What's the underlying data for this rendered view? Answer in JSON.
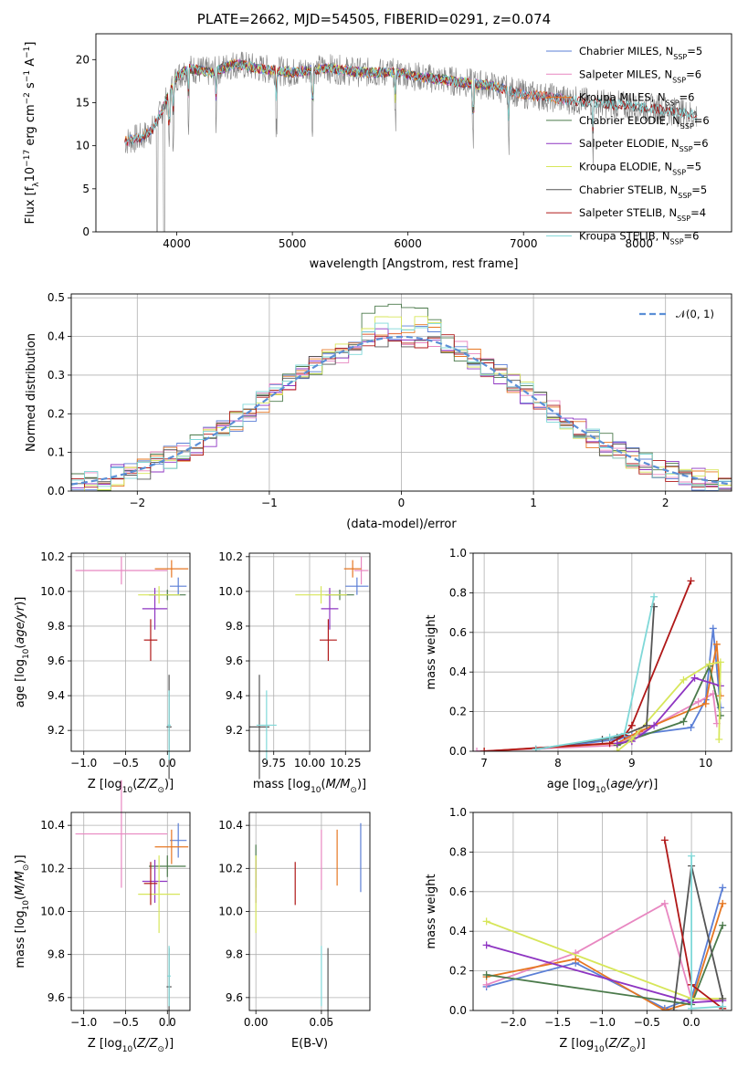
{
  "title": "PLATE=2662, MJD=54505, FIBERID=0291, z=0.074",
  "colors": {
    "chabrier_miles": "#5b7fd6",
    "salpeter_miles": "#e887c1",
    "kroupa_miles": "#e67722",
    "chabrier_elodie": "#4b7a4b",
    "salpeter_elodie": "#8e35c2",
    "kroupa_elodie": "#d7e65a",
    "chabrier_stelib": "#555555",
    "salpeter_stelib": "#b01818",
    "kroupa_stelib": "#7fd8d8",
    "gaussian": "#5b8fd6"
  },
  "chart_data": [
    {
      "id": "spectrum",
      "type": "line",
      "xlabel": "wavelength [Angstrom, rest frame]",
      "ylabel": "Flux [f_λ10^-17 erg cm^-2 s^-1 A^-1]",
      "xlim": [
        3300,
        8800
      ],
      "ylim": [
        0,
        23
      ],
      "xticks": [
        "4000",
        "5000",
        "6000",
        "7000",
        "8000"
      ],
      "yticks": [
        "0",
        "5",
        "10",
        "15",
        "20"
      ],
      "legend_position": "top-right",
      "legend": [
        {
          "label": "Chabrier MILES, N",
          "sub": "SSP",
          "suffix": "=5",
          "color": "chabrier_miles"
        },
        {
          "label": "Salpeter MILES, N",
          "sub": "SSP",
          "suffix": "=6",
          "color": "salpeter_miles"
        },
        {
          "label": "Kroupa MILES, N",
          "sub": "SSP",
          "suffix": "=6",
          "color": "kroupa_miles"
        },
        {
          "label": "Chabrier ELODIE, N",
          "sub": "SSP",
          "suffix": "=6",
          "color": "chabrier_elodie"
        },
        {
          "label": "Salpeter ELODIE, N",
          "sub": "SSP",
          "suffix": "=6",
          "color": "salpeter_elodie"
        },
        {
          "label": "Kroupa ELODIE, N",
          "sub": "SSP",
          "suffix": "=5",
          "color": "kroupa_elodie"
        },
        {
          "label": "Chabrier STELIB, N",
          "sub": "SSP",
          "suffix": "=5",
          "color": "chabrier_stelib"
        },
        {
          "label": "Salpeter STELIB, N",
          "sub": "SSP",
          "suffix": "=4",
          "color": "salpeter_stelib"
        },
        {
          "label": "Kroupa STELIB, N",
          "sub": "SSP",
          "suffix": "=6",
          "color": "kroupa_stelib"
        }
      ],
      "continuum": [
        [
          3550,
          10.5
        ],
        [
          3700,
          11
        ],
        [
          3800,
          12
        ],
        [
          3900,
          15
        ],
        [
          4000,
          18
        ],
        [
          4100,
          19
        ],
        [
          4300,
          18.5
        ],
        [
          4500,
          19.5
        ],
        [
          4700,
          19
        ],
        [
          5000,
          18.5
        ],
        [
          5300,
          19
        ],
        [
          5600,
          18.5
        ],
        [
          5900,
          18.5
        ],
        [
          6100,
          18
        ],
        [
          6400,
          17.5
        ],
        [
          6700,
          17
        ],
        [
          7000,
          16
        ],
        [
          7300,
          15.5
        ],
        [
          7600,
          15
        ],
        [
          8000,
          14.5
        ],
        [
          8300,
          14
        ],
        [
          8500,
          13.5
        ]
      ]
    },
    {
      "id": "residuals",
      "type": "line",
      "xlabel": "(data-model)/error",
      "ylabel": "Normed distribution",
      "xlim": [
        -2.5,
        2.5
      ],
      "ylim": [
        0,
        0.51
      ],
      "xticks": [
        "−2",
        "−1",
        "0",
        "1",
        "2"
      ],
      "yticks": [
        "0.0",
        "0.1",
        "0.2",
        "0.3",
        "0.4",
        "0.5"
      ],
      "legend_position": "top-right",
      "legend_label": "𝒩(0, 1)",
      "bin_width": 0.1,
      "series_order": [
        "chabrier_miles",
        "salpeter_miles",
        "kroupa_miles",
        "chabrier_elodie",
        "salpeter_elodie",
        "kroupa_elodie",
        "chabrier_stelib",
        "salpeter_stelib",
        "kroupa_stelib"
      ],
      "peak_values": [
        0.43,
        0.41,
        0.44,
        0.49,
        0.42,
        0.46,
        0.41,
        0.4,
        0.45
      ]
    },
    {
      "id": "age_vs_Z",
      "type": "scatter",
      "xlabel": "Z [log10(Z/Z⊙)]",
      "ylabel": "age [log10(age/yr)]",
      "xlim": [
        -1.15,
        0.27
      ],
      "ylim": [
        9.08,
        10.22
      ],
      "xticks": [
        "−1.0",
        "−0.5",
        "0.0"
      ],
      "yticks": [
        "9.2",
        "9.4",
        "9.6",
        "9.8",
        "10.0",
        "10.2"
      ],
      "points": [
        {
          "color": "chabrier_miles",
          "x": 0.13,
          "y": 10.03,
          "xerr": 0.1,
          "yerr": 0.05
        },
        {
          "color": "salpeter_miles",
          "x": -0.55,
          "y": 10.12,
          "xerr": 0.55,
          "yerr": 0.08
        },
        {
          "color": "kroupa_miles",
          "x": 0.05,
          "y": 10.13,
          "xerr": 0.2,
          "yerr": 0.05
        },
        {
          "color": "chabrier_elodie",
          "x": 0.0,
          "y": 9.98,
          "xerr": 0.22,
          "yerr": 0.03
        },
        {
          "color": "salpeter_elodie",
          "x": -0.15,
          "y": 9.9,
          "xerr": 0.15,
          "yerr": 0.12
        },
        {
          "color": "kroupa_elodie",
          "x": -0.1,
          "y": 9.98,
          "xerr": 0.25,
          "yerr": 0.05
        },
        {
          "color": "chabrier_stelib",
          "x": 0.02,
          "y": 9.22,
          "xerr": 0.03,
          "yerr": 0.3
        },
        {
          "color": "salpeter_stelib",
          "x": -0.2,
          "y": 9.72,
          "xerr": 0.08,
          "yerr": 0.12
        },
        {
          "color": "kroupa_stelib",
          "x": 0.02,
          "y": 9.23,
          "xerr": 0.02,
          "yerr": 0.2
        }
      ]
    },
    {
      "id": "age_vs_mass",
      "type": "scatter",
      "xlabel": "mass [log10(M/M⊙)]",
      "ylabel": "",
      "xlim": [
        9.58,
        10.42
      ],
      "ylim": [
        9.08,
        10.22
      ],
      "xticks": [
        "9.75",
        "10.00",
        "10.25"
      ],
      "yticks": [
        "9.2",
        "9.4",
        "9.6",
        "9.8",
        "10.0",
        "10.2"
      ],
      "points": [
        {
          "color": "chabrier_miles",
          "x": 10.33,
          "y": 10.03,
          "xerr": 0.08,
          "yerr": 0.05
        },
        {
          "color": "salpeter_miles",
          "x": 10.36,
          "y": 10.12,
          "xerr": 0.05,
          "yerr": 0.08
        },
        {
          "color": "kroupa_miles",
          "x": 10.3,
          "y": 10.13,
          "xerr": 0.06,
          "yerr": 0.05
        },
        {
          "color": "chabrier_elodie",
          "x": 10.21,
          "y": 9.98,
          "xerr": 0.1,
          "yerr": 0.03
        },
        {
          "color": "salpeter_elodie",
          "x": 10.14,
          "y": 9.9,
          "xerr": 0.06,
          "yerr": 0.12
        },
        {
          "color": "kroupa_elodie",
          "x": 10.08,
          "y": 9.98,
          "xerr": 0.18,
          "yerr": 0.05
        },
        {
          "color": "chabrier_stelib",
          "x": 9.65,
          "y": 9.22,
          "xerr": 0.07,
          "yerr": 0.3
        },
        {
          "color": "salpeter_stelib",
          "x": 10.13,
          "y": 9.72,
          "xerr": 0.06,
          "yerr": 0.12
        },
        {
          "color": "kroupa_stelib",
          "x": 9.7,
          "y": 9.23,
          "xerr": 0.07,
          "yerr": 0.2
        }
      ]
    },
    {
      "id": "massweight_vs_age",
      "type": "line",
      "xlabel": "age [log10(age/yr)]",
      "ylabel": "mass weight",
      "xlim": [
        6.85,
        10.35
      ],
      "ylim": [
        0,
        1.0
      ],
      "xticks": [
        "7",
        "8",
        "9",
        "10"
      ],
      "yticks": [
        "0.0",
        "0.2",
        "0.4",
        "0.6",
        "0.8",
        "1.0"
      ],
      "series": [
        {
          "color": "chabrier_miles",
          "x": [
            7.7,
            8.8,
            9.0,
            9.8,
            10.0,
            10.1,
            10.2
          ],
          "y": [
            0.01,
            0.06,
            0.08,
            0.12,
            0.26,
            0.62,
            0.22
          ]
        },
        {
          "color": "salpeter_miles",
          "x": [
            6.9,
            8.8,
            9.0,
            9.9,
            10.1,
            10.15
          ],
          "y": [
            0.0,
            0.03,
            0.07,
            0.25,
            0.29,
            0.14
          ]
        },
        {
          "color": "kroupa_miles",
          "x": [
            7.0,
            8.8,
            9.1,
            10.0,
            10.15,
            10.2
          ],
          "y": [
            0.0,
            0.04,
            0.1,
            0.24,
            0.54,
            0.28
          ]
        },
        {
          "color": "chabrier_elodie",
          "x": [
            8.8,
            9.0,
            9.7,
            10.05,
            10.2
          ],
          "y": [
            0.03,
            0.06,
            0.15,
            0.43,
            0.18
          ]
        },
        {
          "color": "salpeter_elodie",
          "x": [
            8.8,
            9.0,
            9.3,
            9.85,
            10.2
          ],
          "y": [
            0.04,
            0.05,
            0.13,
            0.37,
            0.33
          ]
        },
        {
          "color": "kroupa_elodie",
          "x": [
            8.8,
            9.0,
            9.7,
            10.05,
            10.2,
            10.18
          ],
          "y": [
            0.0,
            0.06,
            0.36,
            0.44,
            0.45,
            0.06
          ]
        },
        {
          "color": "chabrier_stelib",
          "x": [
            7.7,
            8.6,
            8.8,
            9.2,
            9.3
          ],
          "y": [
            0.01,
            0.06,
            0.07,
            0.13,
            0.73
          ]
        },
        {
          "color": "salpeter_stelib",
          "x": [
            7.0,
            8.7,
            8.9,
            9.0,
            9.8
          ],
          "y": [
            0.0,
            0.04,
            0.08,
            0.13,
            0.86
          ]
        },
        {
          "color": "kroupa_stelib",
          "x": [
            7.7,
            8.7,
            8.9,
            9.3
          ],
          "y": [
            0.01,
            0.07,
            0.09,
            0.78
          ]
        }
      ]
    },
    {
      "id": "mass_vs_Z",
      "type": "scatter",
      "xlabel": "Z [log10(Z/Z⊙)]",
      "ylabel": "mass [log10(M/M⊙)]",
      "xlim": [
        -1.15,
        0.27
      ],
      "ylim": [
        9.54,
        10.46
      ],
      "xticks": [
        "−1.0",
        "−0.5",
        "0.0"
      ],
      "yticks": [
        "9.6",
        "9.8",
        "10.0",
        "10.2",
        "10.4"
      ],
      "points": [
        {
          "color": "chabrier_miles",
          "x": 0.13,
          "y": 10.33,
          "xerr": 0.1,
          "yerr": 0.08
        },
        {
          "color": "salpeter_miles",
          "x": -0.55,
          "y": 10.36,
          "xerr": 0.55,
          "yerr": 0.25
        },
        {
          "color": "kroupa_miles",
          "x": 0.05,
          "y": 10.3,
          "xerr": 0.2,
          "yerr": 0.08
        },
        {
          "color": "chabrier_elodie",
          "x": 0.0,
          "y": 10.21,
          "xerr": 0.22,
          "yerr": 0.05
        },
        {
          "color": "salpeter_elodie",
          "x": -0.15,
          "y": 10.14,
          "xerr": 0.15,
          "yerr": 0.1
        },
        {
          "color": "kroupa_elodie",
          "x": -0.1,
          "y": 10.08,
          "xerr": 0.25,
          "yerr": 0.18
        },
        {
          "color": "chabrier_stelib",
          "x": 0.02,
          "y": 9.65,
          "xerr": 0.03,
          "yerr": 0.18
        },
        {
          "color": "salpeter_stelib",
          "x": -0.2,
          "y": 10.13,
          "xerr": 0.08,
          "yerr": 0.1
        },
        {
          "color": "kroupa_stelib",
          "x": 0.02,
          "y": 9.7,
          "xerr": 0.02,
          "yerr": 0.14
        }
      ]
    },
    {
      "id": "mass_vs_ebv",
      "type": "scatter",
      "xlabel": "E(B-V)",
      "ylabel": "",
      "xlim": [
        -0.005,
        0.087
      ],
      "ylim": [
        9.54,
        10.46
      ],
      "xticks": [
        "0.00",
        "0.05"
      ],
      "yticks": [
        "9.6",
        "9.8",
        "10.0",
        "10.2",
        "10.4"
      ],
      "points": [
        {
          "color": "chabrier_miles",
          "x": 0.08,
          "y": 10.25,
          "xerr": 0,
          "yerr": 0.16
        },
        {
          "color": "salpeter_miles",
          "x": 0.05,
          "y": 10.24,
          "xerr": 0,
          "yerr": 0.14
        },
        {
          "color": "kroupa_miles",
          "x": 0.062,
          "y": 10.25,
          "xerr": 0,
          "yerr": 0.13
        },
        {
          "color": "chabrier_elodie",
          "x": 0.0,
          "y": 10.21,
          "xerr": 0,
          "yerr": 0.1
        },
        {
          "color": "salpeter_elodie",
          "x": 0.0,
          "y": 10.14,
          "xerr": 0,
          "yerr": 0.1
        },
        {
          "color": "kroupa_elodie",
          "x": 0.0,
          "y": 10.08,
          "xerr": 0,
          "yerr": 0.18
        },
        {
          "color": "chabrier_stelib",
          "x": 0.055,
          "y": 9.65,
          "xerr": 0,
          "yerr": 0.18
        },
        {
          "color": "salpeter_stelib",
          "x": 0.03,
          "y": 10.13,
          "xerr": 0,
          "yerr": 0.1
        },
        {
          "color": "kroupa_stelib",
          "x": 0.05,
          "y": 9.7,
          "xerr": 0,
          "yerr": 0.14
        }
      ]
    },
    {
      "id": "massweight_vs_Z",
      "type": "line",
      "xlabel": "Z [log10(Z/Z⊙)]",
      "ylabel": "mass weight",
      "xlim": [
        -2.45,
        0.45
      ],
      "ylim": [
        0,
        1.0
      ],
      "xticks": [
        "−2.0",
        "−1.5",
        "−1.0",
        "−0.5",
        "0.0"
      ],
      "yticks": [
        "0.0",
        "0.2",
        "0.4",
        "0.6",
        "0.8",
        "1.0"
      ],
      "series": [
        {
          "color": "chabrier_miles",
          "x": [
            -2.3,
            -1.3,
            -0.3,
            0.0,
            0.35
          ],
          "y": [
            0.12,
            0.24,
            0.01,
            0.06,
            0.62
          ]
        },
        {
          "color": "salpeter_miles",
          "x": [
            -2.3,
            -1.3,
            -0.3,
            0.0,
            0.35
          ],
          "y": [
            0.13,
            0.29,
            0.54,
            0.06,
            0.05
          ]
        },
        {
          "color": "kroupa_miles",
          "x": [
            -2.3,
            -1.3,
            -0.3,
            0.0,
            0.35
          ],
          "y": [
            0.17,
            0.26,
            0.0,
            0.04,
            0.54
          ]
        },
        {
          "color": "chabrier_elodie",
          "x": [
            -2.3,
            0.0,
            0.35
          ],
          "y": [
            0.18,
            0.03,
            0.43
          ]
        },
        {
          "color": "salpeter_elodie",
          "x": [
            -2.3,
            0.0,
            0.35
          ],
          "y": [
            0.33,
            0.04,
            0.05
          ]
        },
        {
          "color": "kroupa_elodie",
          "x": [
            -2.3,
            0.0,
            0.35
          ],
          "y": [
            0.45,
            0.06,
            0.06
          ]
        },
        {
          "color": "chabrier_stelib",
          "x": [
            -0.2,
            0.0,
            0.35
          ],
          "y": [
            0.0,
            0.73,
            0.06
          ]
        },
        {
          "color": "salpeter_stelib",
          "x": [
            -0.3,
            0.0,
            0.35
          ],
          "y": [
            0.86,
            0.13,
            0.01
          ]
        },
        {
          "color": "kroupa_stelib",
          "x": [
            0.0,
            0.0,
            0.35
          ],
          "y": [
            0.78,
            0.01,
            0.02
          ]
        }
      ]
    }
  ]
}
